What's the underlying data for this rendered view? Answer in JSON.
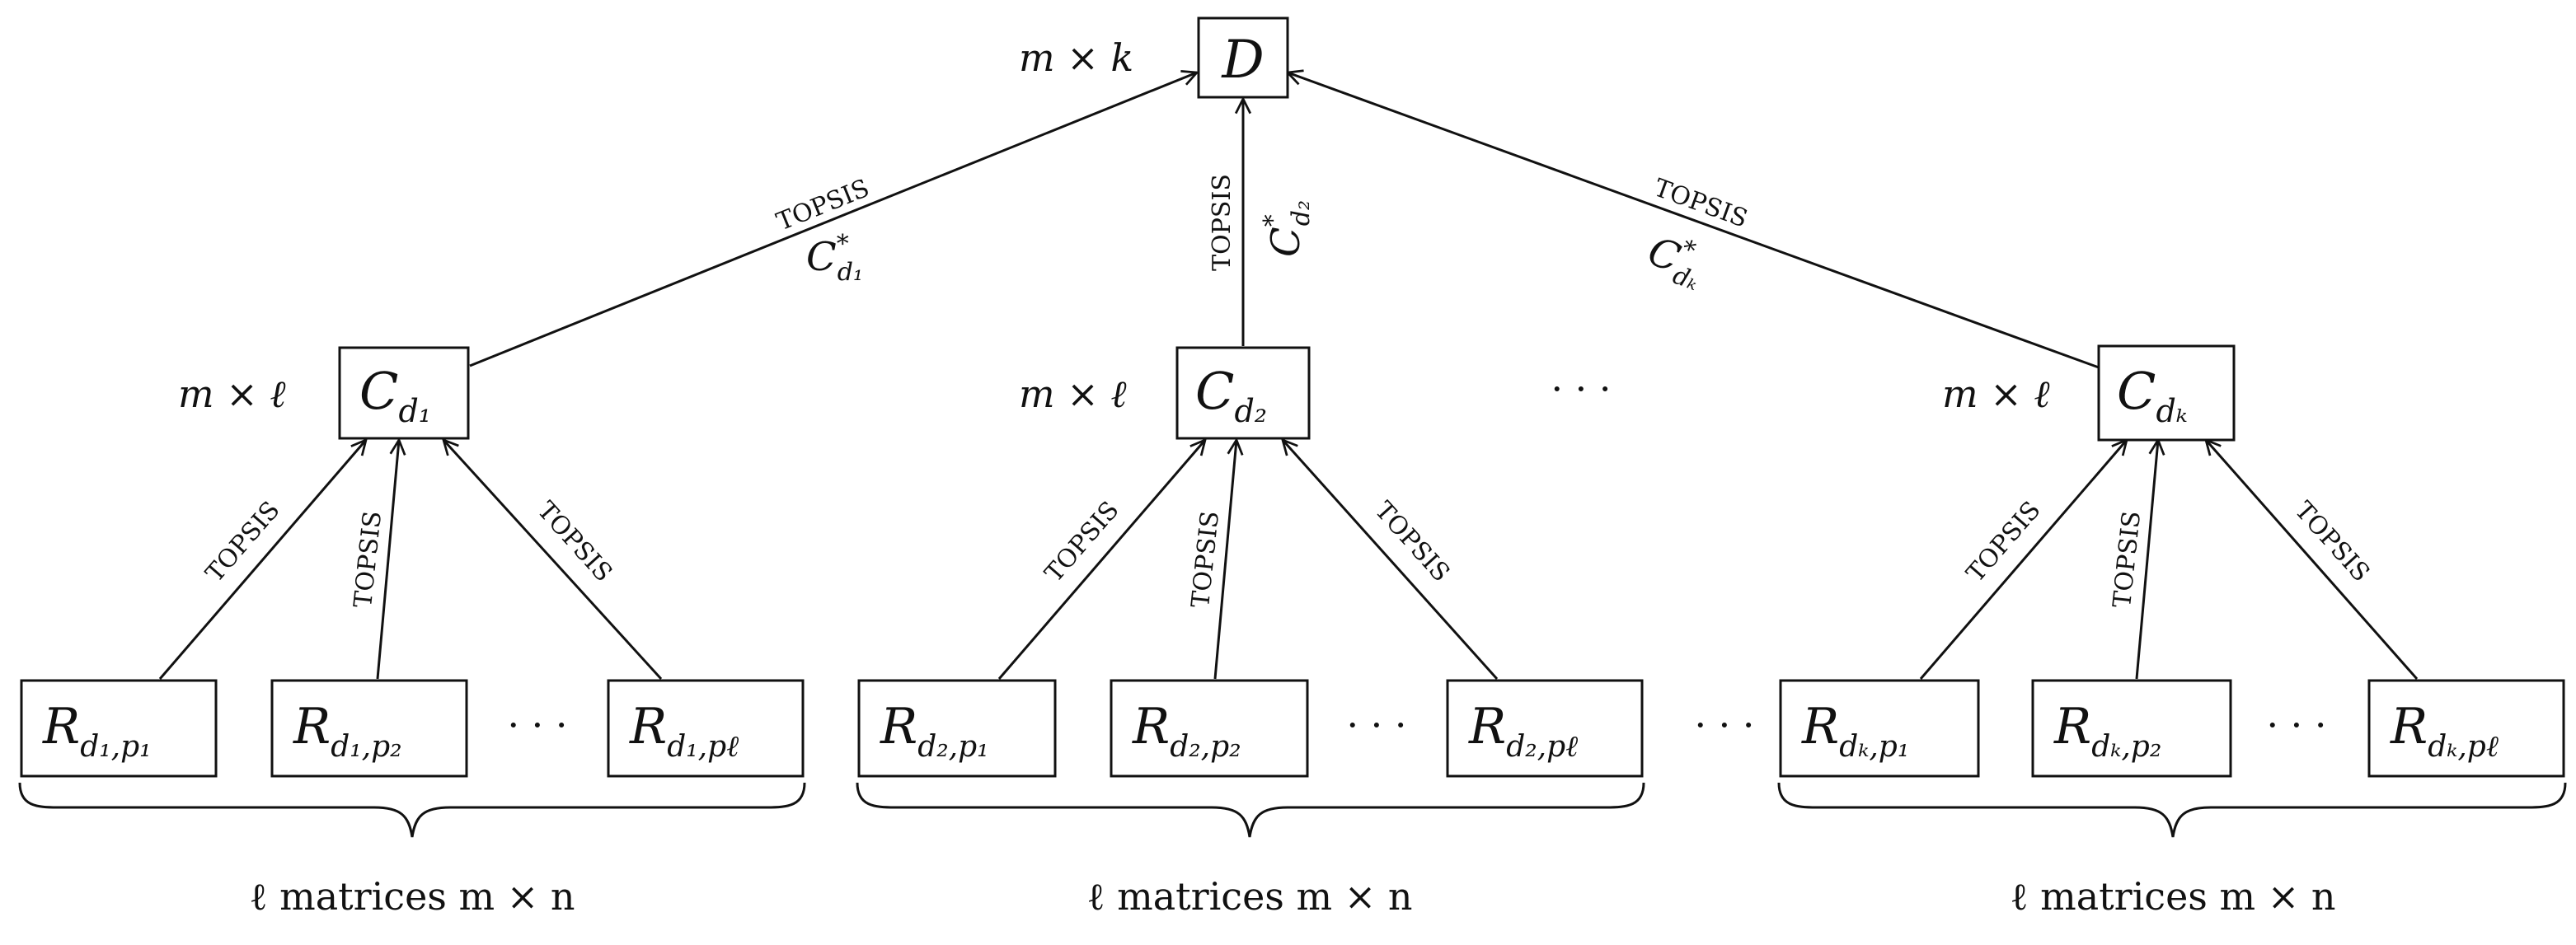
{
  "diagram": {
    "root": {
      "main": "D",
      "sub": "",
      "dim": "m × k"
    },
    "branches": [
      {
        "c": {
          "main": "C",
          "sub": "d₁",
          "dim": "m × ℓ"
        },
        "edge_top_label": "TOPSIS",
        "edge_weight": {
          "main": "C",
          "sup": "*",
          "sub": "d₁"
        },
        "leaf_edge_labels": [
          "TOPSIS",
          "TOPSIS",
          "TOPSIS"
        ],
        "leaves": [
          {
            "main": "R",
            "sub": "d₁,p₁"
          },
          {
            "main": "R",
            "sub": "d₁,p₂"
          },
          {
            "main": "R",
            "sub": "d₁,pℓ"
          }
        ],
        "leaf_ellipsis": "· · ·",
        "brace_label": "ℓ matrices m × n"
      },
      {
        "c": {
          "main": "C",
          "sub": "d₂",
          "dim": "m × ℓ"
        },
        "edge_top_label": "TOPSIS",
        "edge_weight": {
          "main": "C",
          "sup": "*",
          "sub": "d₂"
        },
        "leaf_edge_labels": [
          "TOPSIS",
          "TOPSIS",
          "TOPSIS"
        ],
        "leaves": [
          {
            "main": "R",
            "sub": "d₂,p₁"
          },
          {
            "main": "R",
            "sub": "d₂,p₂"
          },
          {
            "main": "R",
            "sub": "d₂,pℓ"
          }
        ],
        "leaf_ellipsis": "· · ·",
        "brace_label": "ℓ matrices m × n"
      },
      {
        "c": {
          "main": "C",
          "sub": "dₖ",
          "dim": "m × ℓ"
        },
        "edge_top_label": "TOPSIS",
        "edge_weight": {
          "main": "C",
          "sup": "*",
          "sub": "dₖ"
        },
        "leaf_edge_labels": [
          "TOPSIS",
          "TOPSIS",
          "TOPSIS"
        ],
        "leaves": [
          {
            "main": "R",
            "sub": "dₖ,p₁"
          },
          {
            "main": "R",
            "sub": "dₖ,p₂"
          },
          {
            "main": "R",
            "sub": "dₖ,pℓ"
          }
        ],
        "leaf_ellipsis": "· · ·",
        "brace_label": "ℓ matrices m × n"
      }
    ],
    "mid_ellipsis": "· · ·",
    "leaf_row_ellipsis": "· · ·"
  }
}
